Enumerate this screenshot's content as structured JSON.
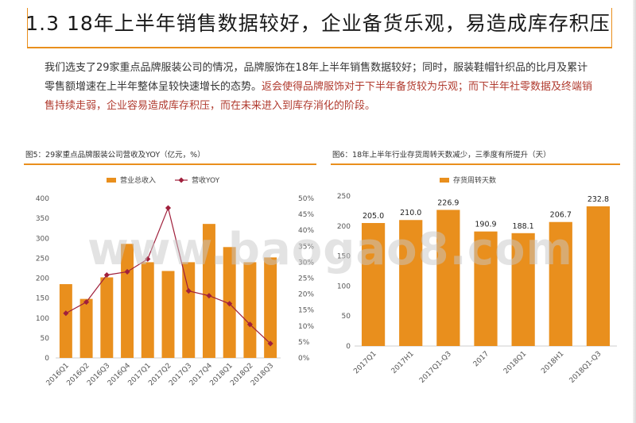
{
  "slide": {
    "title": "1.3 18年上半年销售数据较好，企业备货乐观，易造成库存积压",
    "paragraph_normal": "我们选支了29家重点品牌服装公司的情况，品牌服饰在18年上半年销售数据较好；同时，服装鞋帽针织品的比月及累计零售额增速在上半年整体呈较快速增长的态势。",
    "paragraph_highlight": "返会使得品牌服饰对于下半年备货较为乐观；而下半年社零数据及终端销售持续走弱，企业容易造成库存积压，而在未来进入到库存消化的阶段。",
    "watermark": "www.baogao8.com",
    "accent_color": "#e98f1d",
    "highlight_color": "#b03a2e",
    "line_color": "#a0203c"
  },
  "chart_data": [
    {
      "type": "bar",
      "title": "图5：29家重点品牌服装公司营收及YOY（亿元，%）",
      "categories": [
        "2016Q1",
        "2016Q2",
        "2016Q3",
        "2016Q4",
        "2017Q1",
        "2017Q2",
        "2017Q3",
        "2017Q4",
        "2018Q1",
        "2018Q2",
        "2018Q3"
      ],
      "series": [
        {
          "name": "营业总收入",
          "type": "bar",
          "axis": "left",
          "values": [
            185,
            148,
            202,
            286,
            240,
            218,
            240,
            336,
            278,
            240,
            252
          ]
        },
        {
          "name": "营收YOY",
          "type": "line",
          "axis": "right",
          "values": [
            0.14,
            0.175,
            0.26,
            0.27,
            0.31,
            0.47,
            0.21,
            0.195,
            0.17,
            0.105,
            0.045
          ]
        }
      ],
      "ylim_left": [
        0,
        400
      ],
      "yticks_left": [
        "0",
        "50",
        "100",
        "150",
        "200",
        "250",
        "300",
        "350",
        "400"
      ],
      "ylim_right": [
        0,
        0.5
      ],
      "yticks_right": [
        "0%",
        "5%",
        "10%",
        "15%",
        "20%",
        "25%",
        "30%",
        "35%",
        "40%",
        "45%",
        "50%"
      ],
      "legend_position": "top"
    },
    {
      "type": "bar",
      "title": "图6：18年上半年行业存货周转天数减少，三季度有所提升（天）",
      "categories": [
        "2017Q1",
        "2017H1",
        "2017Q1-Q3",
        "2017",
        "2018Q1",
        "2018H1",
        "2018Q1-Q3"
      ],
      "series": [
        {
          "name": "存货周转天数",
          "values": [
            205.0,
            210.0,
            226.9,
            190.9,
            188.1,
            206.7,
            232.8
          ]
        }
      ],
      "data_labels": [
        "205.0",
        "210.0",
        "226.9",
        "190.9",
        "188.1",
        "206.7",
        "232.8"
      ],
      "ylim": [
        0,
        250
      ],
      "yticks": [
        "0",
        "50",
        "100",
        "150",
        "200",
        "250"
      ],
      "legend_position": "top"
    }
  ]
}
